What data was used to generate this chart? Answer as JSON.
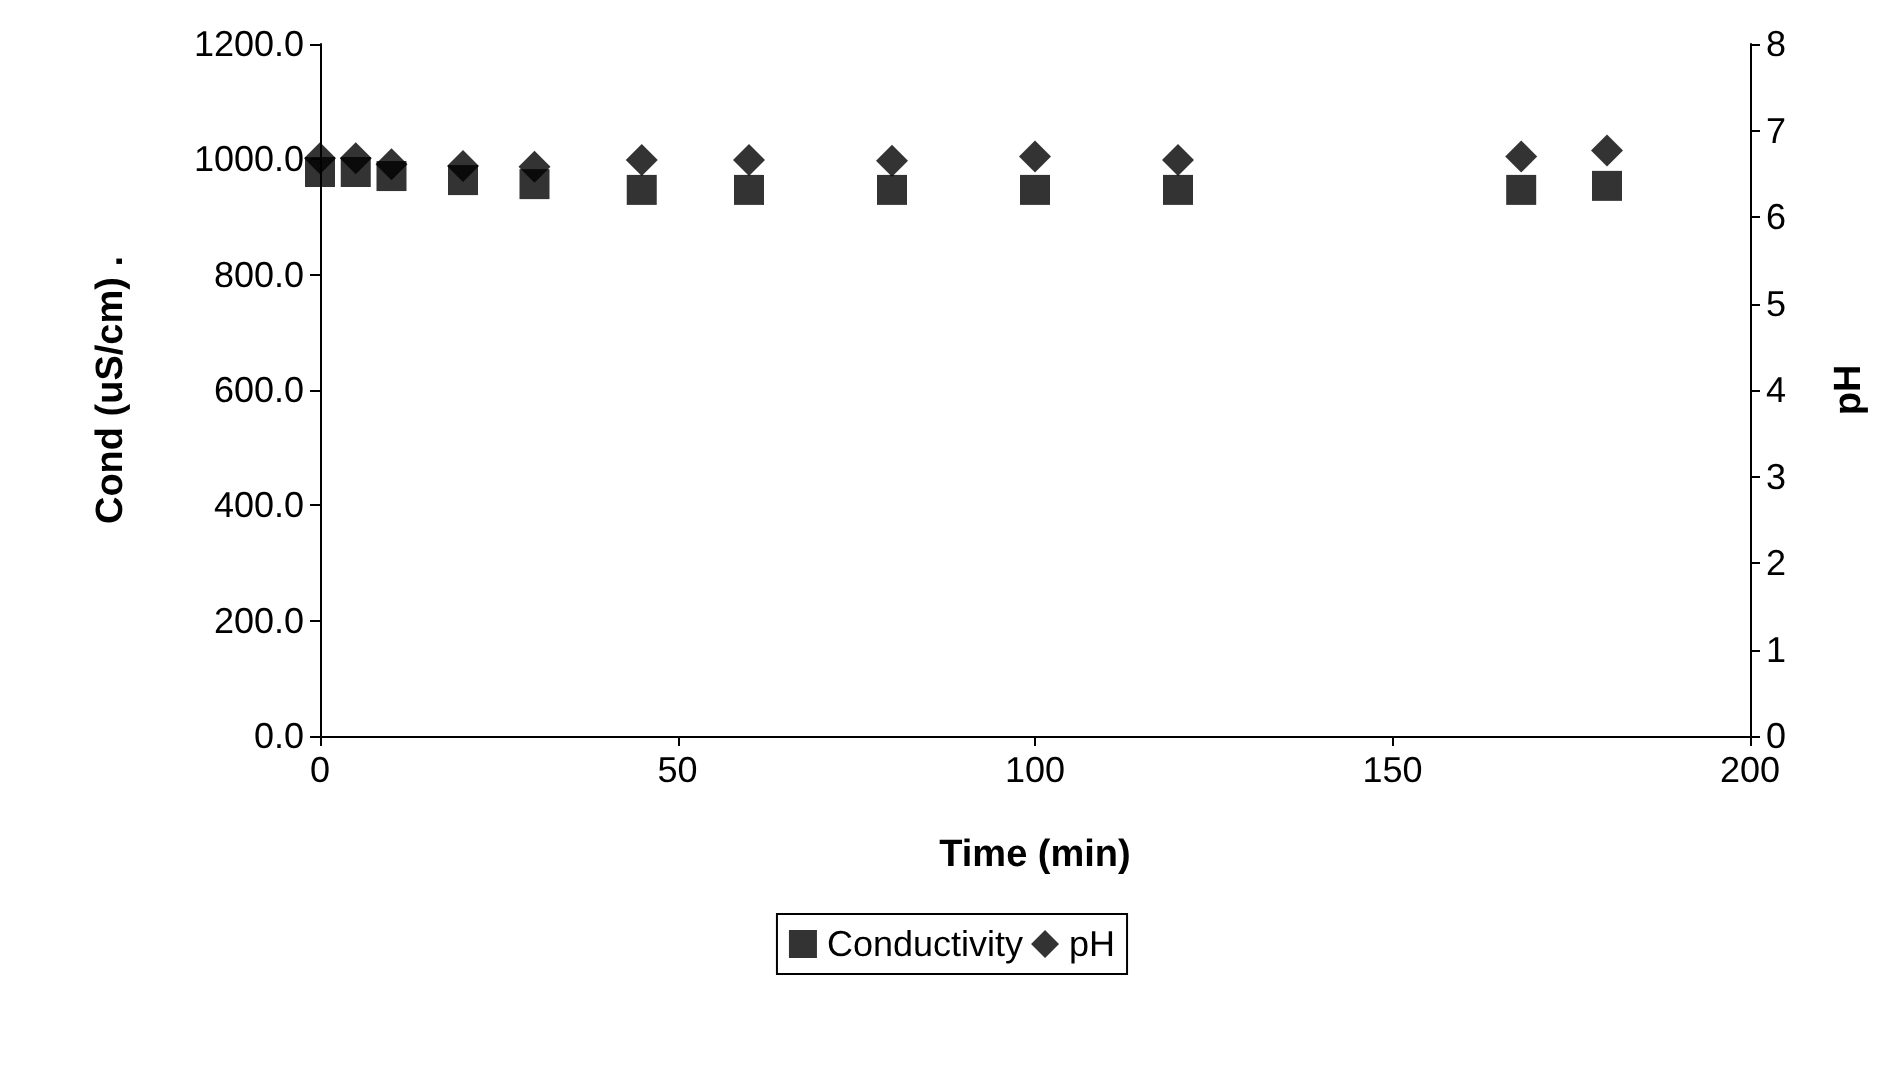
{
  "chart_data": {
    "type": "scatter",
    "xlabel": "Time (min)",
    "ylabel": "Cond (uS/cm) .",
    "y2label": "pH",
    "x": [
      0,
      5,
      10,
      20,
      30,
      45,
      60,
      80,
      100,
      120,
      168,
      180
    ],
    "series": [
      {
        "name": "Conductivity",
        "color": "#000000",
        "marker": "square",
        "values": [
          978,
          978,
          971,
          964,
          957,
          947,
          947,
          947,
          947,
          947,
          947,
          954
        ]
      },
      {
        "name": "pH",
        "color": "#000000",
        "marker": "diamond",
        "axis": "y2",
        "values": [
          6.68,
          6.68,
          6.61,
          6.59,
          6.58,
          6.66,
          6.66,
          6.65,
          6.7,
          6.66,
          6.7,
          6.77
        ]
      }
    ],
    "xlim": [
      0,
      200
    ],
    "xticks": [
      0,
      50,
      100,
      150,
      200
    ],
    "ylim": [
      0,
      1200
    ],
    "yticks": [
      {
        "value": 0,
        "label": "0.0"
      },
      {
        "value": 200,
        "label": "200.0"
      },
      {
        "value": 400,
        "label": "400.0"
      },
      {
        "value": 600,
        "label": "600.0"
      },
      {
        "value": 800,
        "label": "800.0"
      },
      {
        "value": 1000,
        "label": "1000.0"
      },
      {
        "value": 1200,
        "label": "1200.0"
      }
    ],
    "y2lim": [
      0,
      8
    ],
    "y2ticks": [
      0,
      1,
      2,
      3,
      4,
      5,
      6,
      7,
      8
    ],
    "grid": false,
    "legend": "bottom"
  }
}
